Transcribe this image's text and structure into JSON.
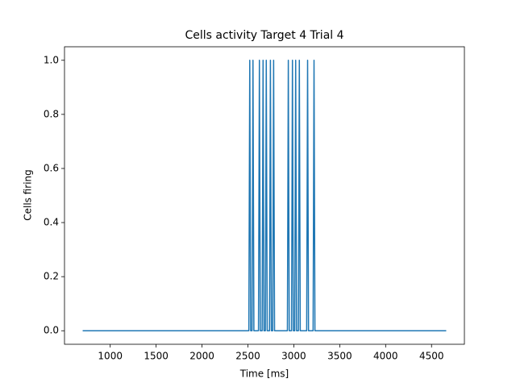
{
  "chart_data": {
    "type": "line",
    "title": "Cells activity Target 4 Trial 4",
    "x_label": "Time [ms]",
    "y_label": "Cells firing",
    "x": [
      700,
      2510,
      2520,
      2530,
      2545,
      2555,
      2565,
      2615,
      2625,
      2635,
      2655,
      2665,
      2675,
      2690,
      2700,
      2710,
      2735,
      2745,
      2755,
      2770,
      2780,
      2790,
      2930,
      2940,
      2950,
      2975,
      2985,
      2995,
      3010,
      3020,
      3030,
      3050,
      3060,
      3070,
      3140,
      3150,
      3160,
      3210,
      3220,
      3230,
      4660
    ],
    "series": [
      {
        "color": "#1f77b4",
        "values": [
          0,
          0,
          1,
          0,
          0,
          1,
          0,
          0,
          1,
          0,
          0,
          1,
          0,
          0,
          1,
          0,
          0,
          1,
          0,
          0,
          1,
          0,
          0,
          1,
          0,
          0,
          1,
          0,
          0,
          1,
          0,
          0,
          1,
          0,
          0,
          1,
          0,
          0,
          1,
          0,
          0
        ]
      }
    ],
    "xlim": [
      502,
      4858
    ],
    "ylim": [
      -0.05,
      1.05
    ],
    "xticks": [
      1000,
      1500,
      2000,
      2500,
      3000,
      3500,
      4000,
      4500
    ],
    "yticks": [
      {
        "value": 0,
        "label": "0.0"
      },
      0.2,
      0.4,
      0.6,
      0.8,
      {
        "value": 1,
        "label": "1.0"
      }
    ],
    "grid": false
  }
}
